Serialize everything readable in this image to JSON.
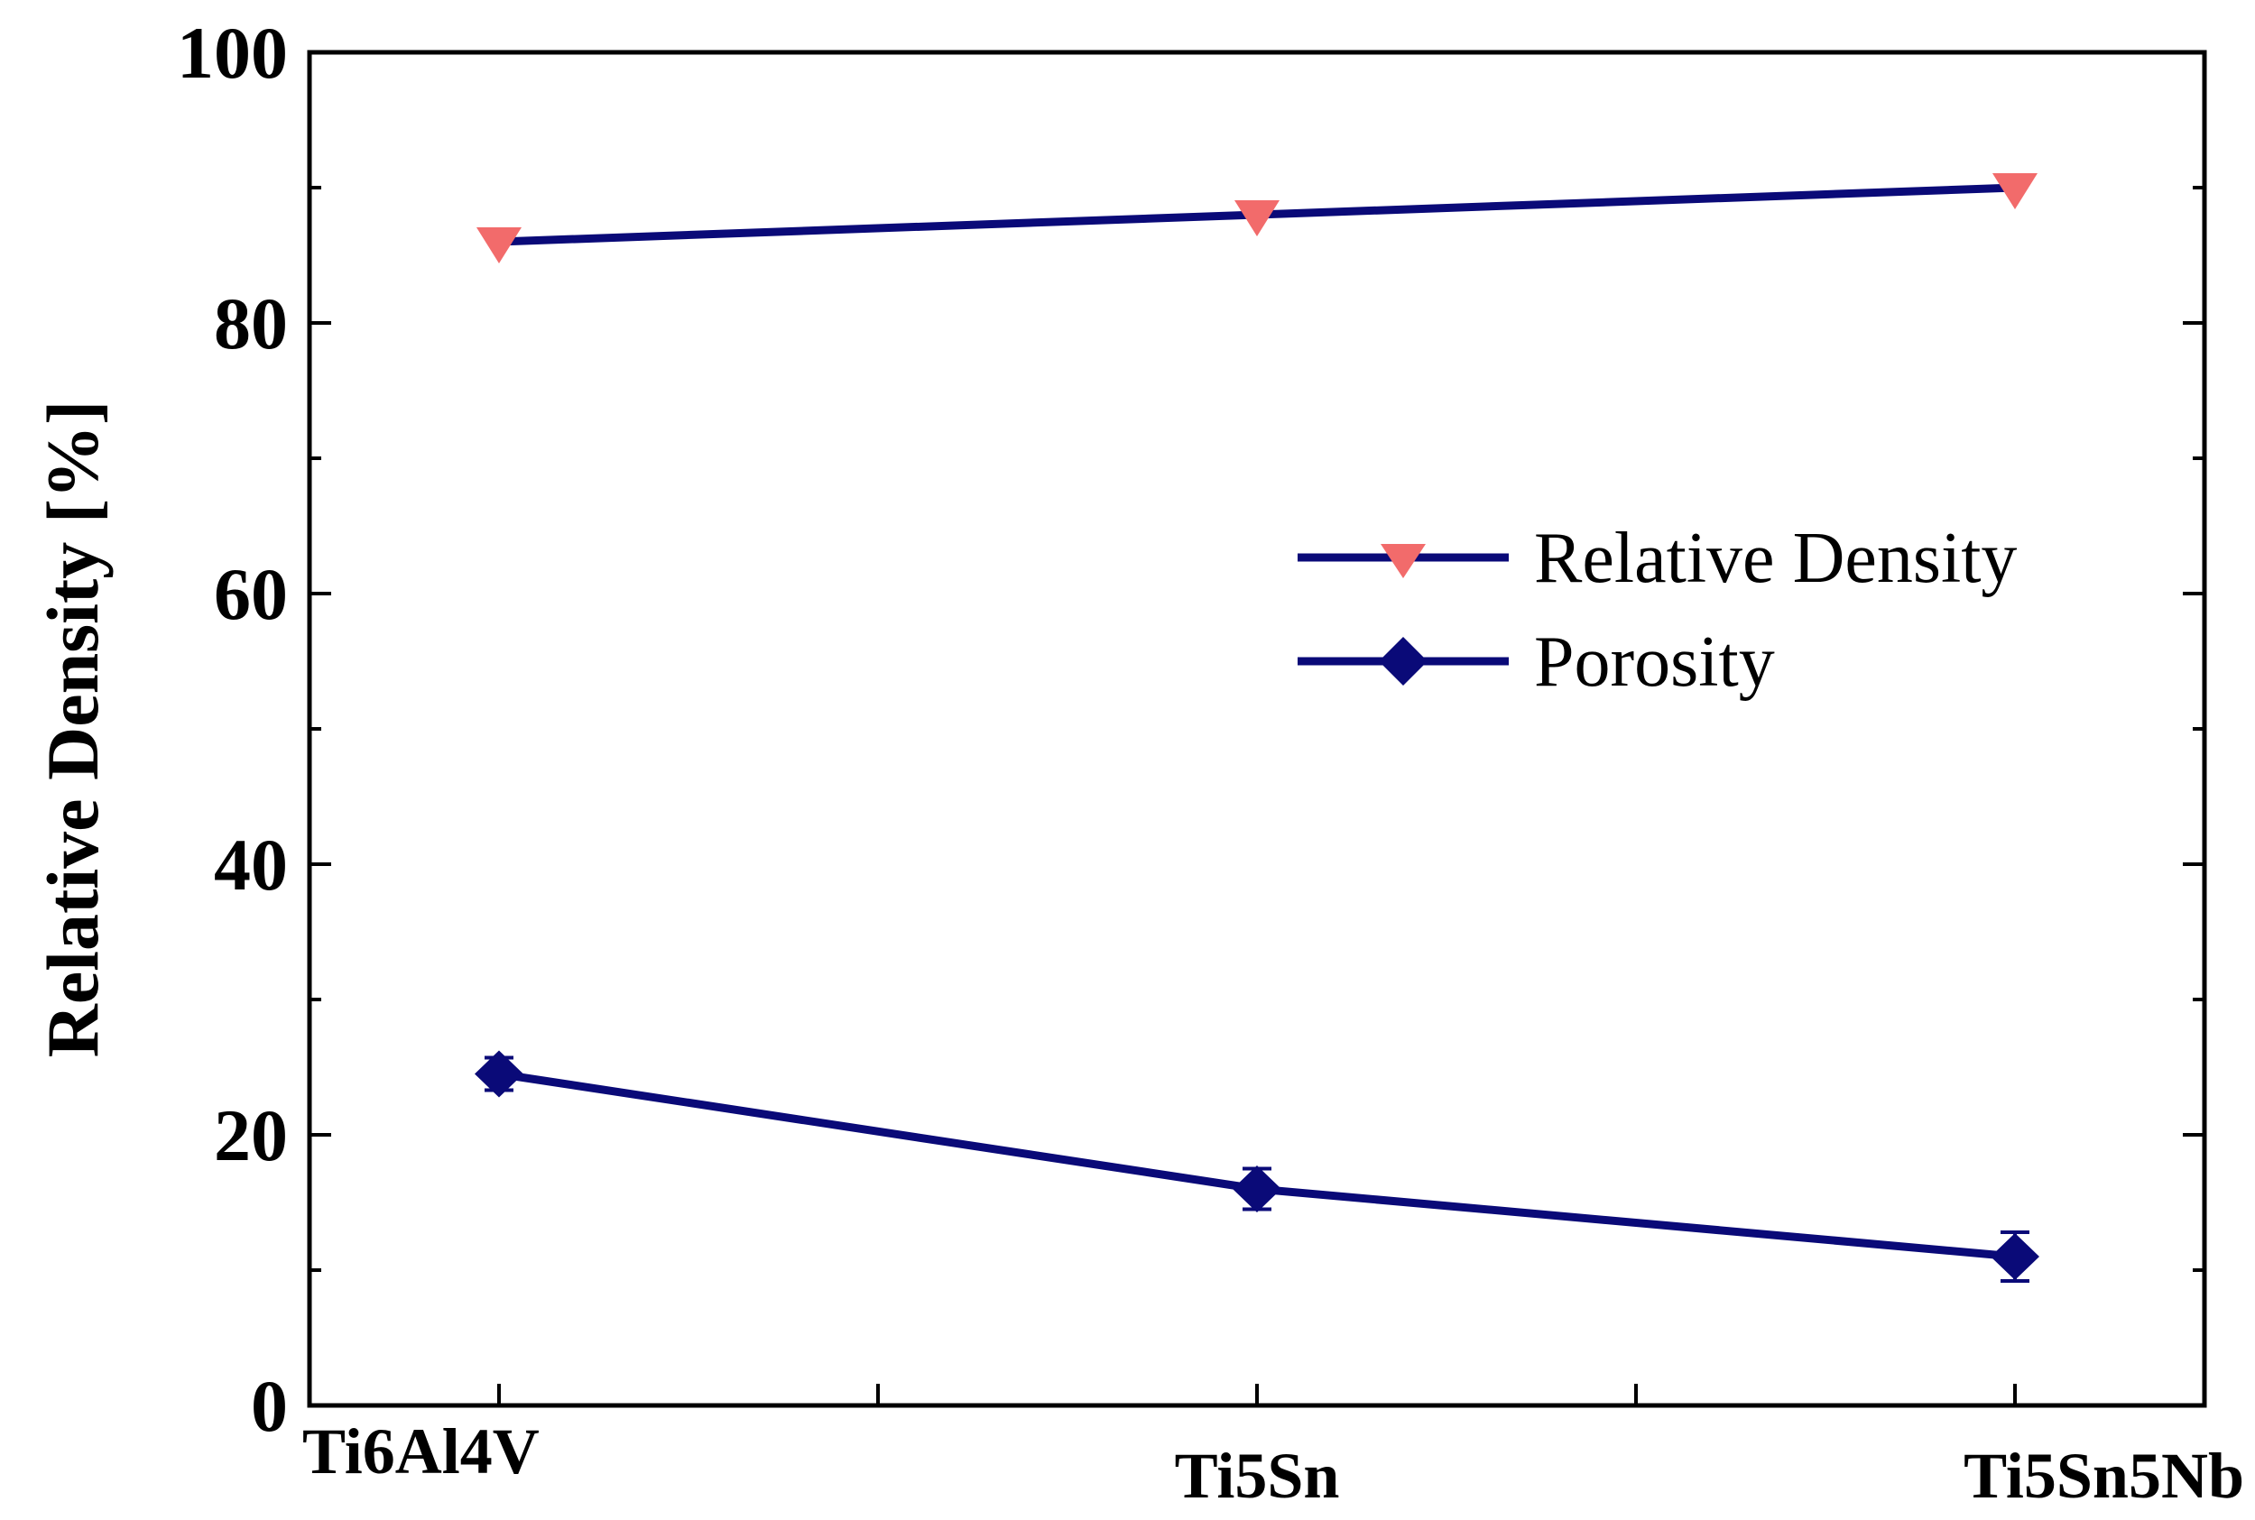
{
  "chart_data": {
    "type": "line",
    "title": "",
    "xlabel": "",
    "ylabel": "Relative Density [%]",
    "ylim": [
      0,
      100
    ],
    "yticks": [
      0,
      20,
      40,
      60,
      80,
      100
    ],
    "y_tick_labels": [
      "0",
      "20",
      "40",
      "60",
      "80",
      "100"
    ],
    "categories": [
      "Ti6Al4V",
      "Ti5Sn",
      "Ti5Sn5Nb"
    ],
    "grid": false,
    "legend_position": "center-right",
    "series": [
      {
        "name": "Relative Density",
        "values": [
          86,
          88,
          90
        ],
        "errors": [
          0,
          0,
          0
        ],
        "marker": "triangle-down",
        "line_color": "#0a0a78",
        "marker_color": "#f26b6b"
      },
      {
        "name": "Porosity",
        "values": [
          24.5,
          16,
          11
        ],
        "errors": [
          1.2,
          1.5,
          1.8
        ],
        "marker": "diamond",
        "line_color": "#0a0a78",
        "marker_color": "#0a0a78"
      }
    ]
  }
}
